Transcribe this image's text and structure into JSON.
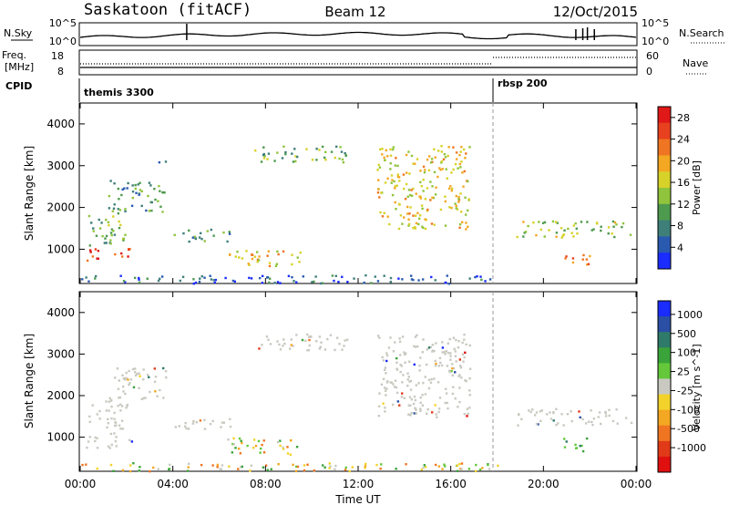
{
  "header": {
    "station": "Saskatoon (fitACF)",
    "beam": "Beam 12",
    "date": "12/Oct/2015"
  },
  "top_panel": {
    "left_label": "N.Sky",
    "left_ticks": [
      "10^5",
      "10^0"
    ],
    "right_ticks": [
      "10^5",
      "10^0"
    ],
    "right_label": "N.Search",
    "right_label_style": "dotted"
  },
  "freq_panel": {
    "left_label_line1": "Freq.",
    "left_label_line2": "[MHz]",
    "left_ticks": [
      "18",
      "8"
    ],
    "right_ticks": [
      "60",
      "0"
    ],
    "right_label": "Nave",
    "right_label_style": "dotted"
  },
  "cpid": {
    "label": "CPID",
    "segments": [
      {
        "name": "themis 3300",
        "start_hour": 0
      },
      {
        "name": "rbsp 200",
        "start_hour": 18
      }
    ]
  },
  "chart_data": [
    {
      "type": "heatmap",
      "title": "",
      "ylabel": "Slant Range [km]",
      "xlabel": "",
      "xlim_hours": [
        0,
        24
      ],
      "ylim": [
        180,
        4500
      ],
      "x_tick_labels": [
        "00:00",
        "04:00",
        "08:00",
        "12:00",
        "16:00",
        "20:00",
        "00:00"
      ],
      "y_ticks": [
        1000,
        2000,
        3000,
        4000
      ],
      "colorbar": {
        "label": "Power [dB]",
        "ticks": [
          4,
          8,
          12,
          16,
          20,
          24,
          28
        ],
        "range": [
          0,
          30
        ],
        "colors": [
          "#1a2cff",
          "#2a5ab0",
          "#3f7f7a",
          "#4e9a4e",
          "#8fc43c",
          "#d6d229",
          "#f4a722",
          "#f07522",
          "#e8411f",
          "#e01818"
        ]
      },
      "scatter_regions": [
        {
          "t0": 0.2,
          "t1": 2.2,
          "r0": 750,
          "r1": 1050,
          "level": 27
        },
        {
          "t0": 0.3,
          "t1": 2.0,
          "r0": 1100,
          "r1": 1900,
          "level": 12
        },
        {
          "t0": 1.2,
          "t1": 3.7,
          "r0": 1900,
          "r1": 2700,
          "level": 10
        },
        {
          "t0": 3.3,
          "t1": 3.9,
          "r0": 3100,
          "r1": 3200,
          "level": 8
        },
        {
          "t0": 6.3,
          "t1": 9.5,
          "r0": 600,
          "r1": 1000,
          "level": 18
        },
        {
          "t0": 4.0,
          "t1": 6.5,
          "r0": 1200,
          "r1": 1500,
          "level": 10
        },
        {
          "t0": 7.5,
          "t1": 11.6,
          "r0": 3100,
          "r1": 3500,
          "level": 11
        },
        {
          "t0": 12.8,
          "t1": 16.8,
          "r0": 1500,
          "r1": 3500,
          "level": 17
        },
        {
          "t0": 18.8,
          "t1": 23.8,
          "r0": 1300,
          "r1": 1700,
          "level": 14
        },
        {
          "t0": 20.8,
          "t1": 22.0,
          "r0": 650,
          "r1": 1000,
          "level": 24
        },
        {
          "t0": 0.0,
          "t1": 18.0,
          "r0": 200,
          "r1": 400,
          "level": 5
        }
      ]
    },
    {
      "type": "heatmap",
      "title": "",
      "ylabel": "Slant Range [km]",
      "xlabel": "Time UT",
      "xlim_hours": [
        0,
        24
      ],
      "ylim": [
        180,
        4500
      ],
      "x_tick_labels": [
        "00:00",
        "04:00",
        "08:00",
        "12:00",
        "16:00",
        "20:00",
        "00:00"
      ],
      "y_ticks": [
        1000,
        2000,
        3000,
        4000
      ],
      "colorbar": {
        "label": "Velocity [m s^-1]",
        "ticks": [
          1000,
          500,
          100,
          25,
          -25,
          -100,
          -500,
          -1000
        ],
        "colors": [
          "#1a2cff",
          "#2a4fa5",
          "#2f7a6a",
          "#3aa43a",
          "#64c83a",
          "#c9c9c1",
          "#f2d22b",
          "#f4a722",
          "#f07522",
          "#e03a18",
          "#e01010"
        ]
      },
      "scatter_regions": [
        {
          "t0": 0.2,
          "t1": 2.2,
          "r0": 750,
          "r1": 1050,
          "level": "ground"
        },
        {
          "t0": 0.3,
          "t1": 2.0,
          "r0": 1100,
          "r1": 1900,
          "level": "ground"
        },
        {
          "t0": 1.2,
          "t1": 3.7,
          "r0": 1900,
          "r1": 2700,
          "level": "ground"
        },
        {
          "t0": 4.0,
          "t1": 6.5,
          "r0": 1200,
          "r1": 1500,
          "level": "ground"
        },
        {
          "t0": 6.3,
          "t1": 9.5,
          "r0": 600,
          "r1": 1000,
          "level": "mixed"
        },
        {
          "t0": 7.5,
          "t1": 11.6,
          "r0": 3100,
          "r1": 3500,
          "level": "ground"
        },
        {
          "t0": 12.8,
          "t1": 16.8,
          "r0": 1500,
          "r1": 3500,
          "level": "ground"
        },
        {
          "t0": 18.8,
          "t1": 23.8,
          "r0": 1300,
          "r1": 1700,
          "level": "ground"
        },
        {
          "t0": 20.8,
          "t1": 22.0,
          "r0": 650,
          "r1": 1000,
          "level": "positive"
        },
        {
          "t0": 0.0,
          "t1": 18.0,
          "r0": 200,
          "r1": 400,
          "level": "mixed"
        }
      ]
    }
  ]
}
